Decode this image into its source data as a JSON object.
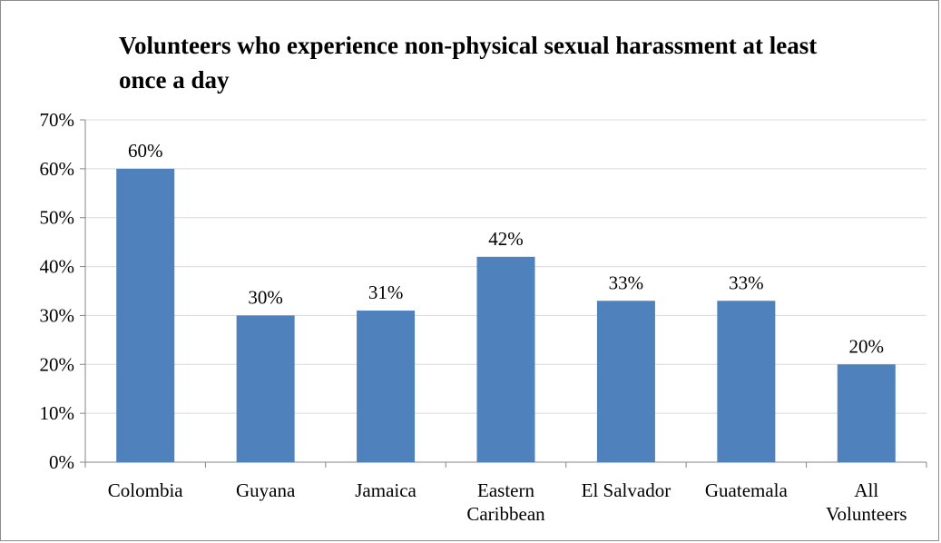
{
  "chart_data": {
    "type": "bar",
    "title": "Volunteers who experience non-physical sexual harassment at least once a day",
    "xlabel": "",
    "ylabel": "",
    "categories": [
      [
        "Colombia"
      ],
      [
        "Guyana"
      ],
      [
        "Jamaica"
      ],
      [
        "Eastern",
        "Caribbean"
      ],
      [
        "El Salvador"
      ],
      [
        "Guatemala"
      ],
      [
        "All",
        "Volunteers"
      ]
    ],
    "values": [
      60,
      30,
      31,
      42,
      33,
      33,
      20
    ],
    "data_labels": [
      "60%",
      "30%",
      "31%",
      "42%",
      "33%",
      "33%",
      "20%"
    ],
    "ylim": [
      0,
      70
    ],
    "yticks": [
      0,
      10,
      20,
      30,
      40,
      50,
      60,
      70
    ],
    "ytick_labels": [
      "0%",
      "10%",
      "20%",
      "30%",
      "40%",
      "50%",
      "60%",
      "70%"
    ],
    "grid": true,
    "legend": "none",
    "colors": {
      "bar": "#4f81bd",
      "axis": "#868686",
      "grid": "#d9d9d9"
    }
  }
}
